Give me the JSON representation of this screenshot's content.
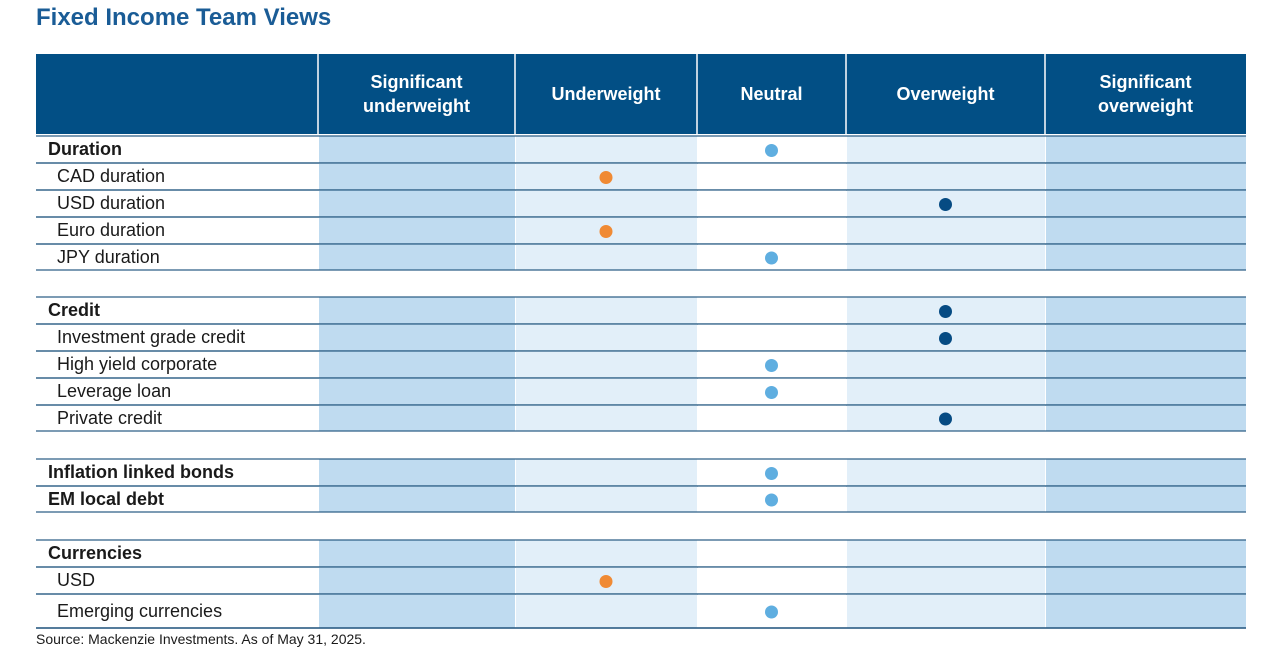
{
  "title": "Fixed Income Team Views",
  "source": "Source: Mackenzie Investments. As of May 31, 2025.",
  "colors": {
    "header_bg": "#024f85",
    "title": "#1a5c96",
    "band_dark": "#bfdbf0",
    "band_light": "#e2eff9",
    "rule": "#2e5f86",
    "neutral_dot": "#5faee0",
    "underweight_dot": "#f08a34",
    "overweight_dot": "#064b83"
  },
  "chart_data": {
    "type": "table",
    "title": "Fixed Income Team Views",
    "columns": [
      "Significant\nunderweight",
      "Underweight",
      "Neutral",
      "Overweight",
      "Significant\noverweight"
    ],
    "rows": [
      {
        "label": "Duration",
        "group": true,
        "view": "Neutral"
      },
      {
        "label": "CAD duration",
        "group": false,
        "view": "Underweight"
      },
      {
        "label": "USD duration",
        "group": false,
        "view": "Overweight"
      },
      {
        "label": "Euro duration",
        "group": false,
        "view": "Underweight"
      },
      {
        "label": "JPY duration",
        "group": false,
        "view": "Neutral"
      },
      {
        "label": "Credit",
        "group": true,
        "view": "Overweight"
      },
      {
        "label": "Investment grade credit",
        "group": false,
        "view": "Overweight"
      },
      {
        "label": "High yield corporate",
        "group": false,
        "view": "Neutral"
      },
      {
        "label": "Leverage loan",
        "group": false,
        "view": "Neutral"
      },
      {
        "label": "Private credit",
        "group": false,
        "view": "Overweight"
      },
      {
        "label": "Inflation linked bonds",
        "group": true,
        "view": "Neutral"
      },
      {
        "label": "EM local debt",
        "group": true,
        "view": "Neutral"
      },
      {
        "label": "Currencies",
        "group": true,
        "view": ""
      },
      {
        "label": "USD",
        "group": false,
        "view": "Underweight"
      },
      {
        "label": "Emerging currencies",
        "group": false,
        "view": "Neutral"
      }
    ]
  }
}
